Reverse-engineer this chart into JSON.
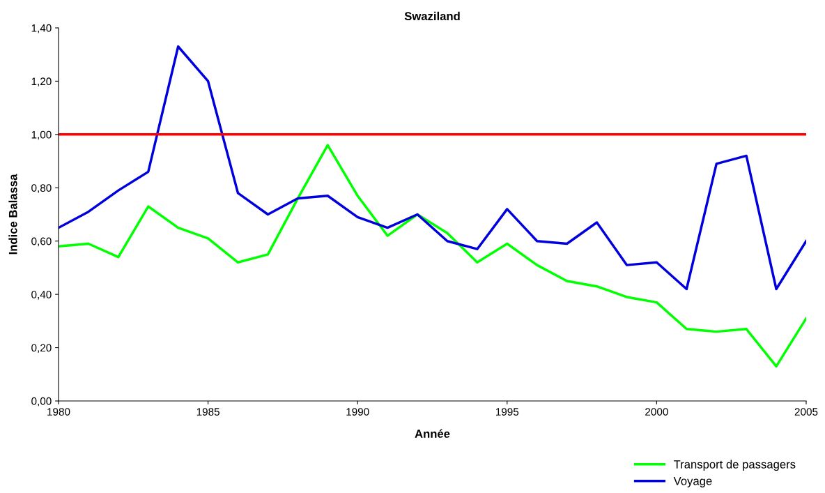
{
  "chart_data": {
    "type": "line",
    "title": "Swaziland",
    "xlabel": "Année",
    "ylabel": "Indice Balassa",
    "x": [
      1980,
      1981,
      1982,
      1983,
      1984,
      1985,
      1986,
      1987,
      1988,
      1989,
      1990,
      1991,
      1992,
      1993,
      1994,
      1995,
      1996,
      1997,
      1998,
      1999,
      2000,
      2001,
      2002,
      2003,
      2004,
      2005
    ],
    "series": [
      {
        "name": "Transport de passagers",
        "color": "#00ff00",
        "values": [
          0.58,
          0.59,
          0.54,
          0.73,
          0.65,
          0.61,
          0.52,
          0.55,
          0.76,
          0.96,
          0.77,
          0.62,
          0.7,
          0.63,
          0.52,
          0.59,
          0.51,
          0.45,
          0.43,
          0.39,
          0.37,
          0.27,
          0.26,
          0.27,
          0.13,
          0.31
        ]
      },
      {
        "name": "Voyage",
        "color": "#0000dd",
        "values": [
          0.65,
          0.71,
          0.79,
          0.86,
          1.33,
          1.2,
          0.78,
          0.7,
          0.76,
          0.77,
          0.69,
          0.65,
          0.7,
          0.6,
          0.57,
          0.72,
          0.6,
          0.59,
          0.67,
          0.51,
          0.52,
          0.42,
          0.89,
          0.92,
          0.42,
          0.6
        ]
      }
    ],
    "xlim": [
      1980,
      2005
    ],
    "xticks": [
      1980,
      1985,
      1990,
      1995,
      2000,
      2005
    ],
    "ylim": [
      0,
      1.4
    ],
    "yticks": [
      {
        "value": 0,
        "label": "0,00"
      },
      {
        "value": 0.2,
        "label": "0,20"
      },
      {
        "value": 0.4,
        "label": "0,40"
      },
      {
        "value": 0.6,
        "label": "0,60"
      },
      {
        "value": 0.8,
        "label": "0,80"
      },
      {
        "value": 1.0,
        "label": "1,00"
      },
      {
        "value": 1.2,
        "label": "1,20"
      },
      {
        "value": 1.4,
        "label": "1,40"
      }
    ],
    "ref_lines": [
      {
        "axis": "y",
        "value": 1.0,
        "color": "#ff0000"
      }
    ],
    "grid": false,
    "legend": "bottom right",
    "marker": "none",
    "line_style": "solid"
  }
}
